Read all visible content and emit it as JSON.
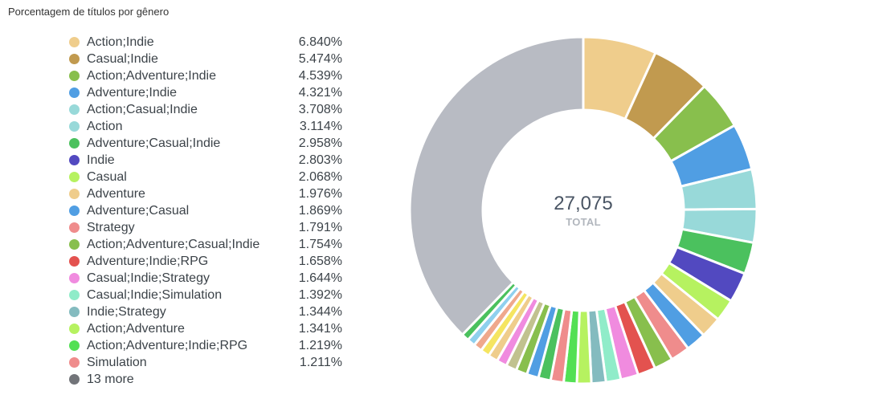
{
  "chart_data": {
    "type": "pie",
    "title": "Porcentagem de títulos por gênero",
    "total": "27,075",
    "total_label": "TOTAL",
    "legend_items": [
      {
        "name": "Action;Indie",
        "value": 6.84,
        "label": "6.840%",
        "color": "#efcd8c"
      },
      {
        "name": "Casual;Indie",
        "value": 5.474,
        "label": "5.474%",
        "color": "#c19a4f"
      },
      {
        "name": "Action;Adventure;Indie",
        "value": 4.539,
        "label": "4.539%",
        "color": "#88bf4d"
      },
      {
        "name": "Adventure;Indie",
        "value": 4.321,
        "label": "4.321%",
        "color": "#509ee3"
      },
      {
        "name": "Action;Casual;Indie",
        "value": 3.708,
        "label": "3.708%",
        "color": "#98d9d9"
      },
      {
        "name": "Action",
        "value": 3.114,
        "label": "3.114%",
        "color": "#98d9d9"
      },
      {
        "name": "Adventure;Casual;Indie",
        "value": 2.958,
        "label": "2.958%",
        "color": "#4bc15e"
      },
      {
        "name": "Indie",
        "value": 2.803,
        "label": "2.803%",
        "color": "#5249c0"
      },
      {
        "name": "Casual",
        "value": 2.068,
        "label": "2.068%",
        "color": "#b6f260"
      },
      {
        "name": "Adventure",
        "value": 1.976,
        "label": "1.976%",
        "color": "#efcd8c"
      },
      {
        "name": "Adventure;Casual",
        "value": 1.869,
        "label": "1.869%",
        "color": "#509ee3"
      },
      {
        "name": "Strategy",
        "value": 1.791,
        "label": "1.791%",
        "color": "#ef8c8c"
      },
      {
        "name": "Action;Adventure;Casual;Indie",
        "value": 1.754,
        "label": "1.754%",
        "color": "#88bf4d"
      },
      {
        "name": "Adventure;Indie;RPG",
        "value": 1.658,
        "label": "1.658%",
        "color": "#e3524f"
      },
      {
        "name": "Casual;Indie;Strategy",
        "value": 1.644,
        "label": "1.644%",
        "color": "#f08bdf"
      },
      {
        "name": "Casual;Indie;Simulation",
        "value": 1.392,
        "label": "1.392%",
        "color": "#90ecc9"
      },
      {
        "name": "Indie;Strategy",
        "value": 1.344,
        "label": "1.344%",
        "color": "#84bbbf"
      },
      {
        "name": "Action;Adventure",
        "value": 1.341,
        "label": "1.341%",
        "color": "#b6f260"
      },
      {
        "name": "Action;Adventure;Indie;RPG",
        "value": 1.219,
        "label": "1.219%",
        "color": "#53e054"
      },
      {
        "name": "Simulation",
        "value": 1.211,
        "label": "1.211%",
        "color": "#ef8c8c"
      },
      {
        "name": "13 more",
        "value": null,
        "label": "",
        "color": "#727479"
      }
    ],
    "unlabeled_slices": [
      {
        "value": 1.15,
        "color": "#4bc15e"
      },
      {
        "value": 1.1,
        "color": "#509ee3"
      },
      {
        "value": 1.05,
        "color": "#88bf4d"
      },
      {
        "value": 1.0,
        "color": "#c1c28f"
      },
      {
        "value": 0.95,
        "color": "#f08bdf"
      },
      {
        "value": 0.9,
        "color": "#efcd8c"
      },
      {
        "value": 0.85,
        "color": "#f5e561"
      },
      {
        "value": 0.8,
        "color": "#efa88c"
      },
      {
        "value": 0.75,
        "color": "#8fd0ee"
      },
      {
        "value": 0.7,
        "color": "#4bc15e"
      }
    ],
    "remainder_color": "#b8bbc3"
  }
}
